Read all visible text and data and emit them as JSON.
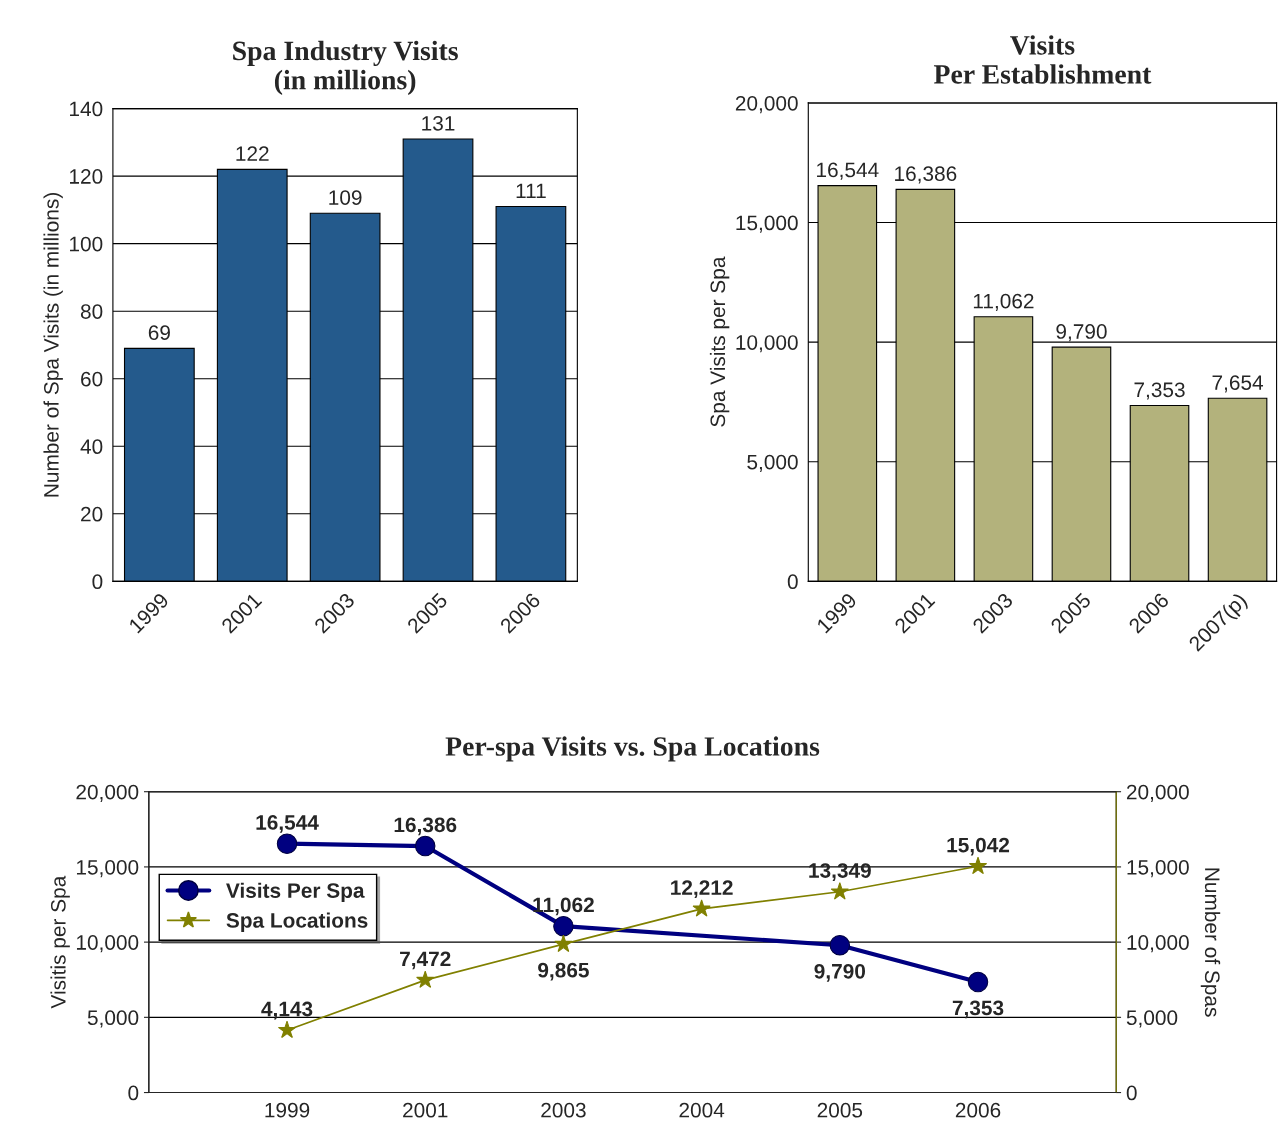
{
  "chart_data": [
    {
      "type": "bar",
      "title": "Spa Industry Visits\n(in millions)",
      "ylabel": "Number of Spa Visits (in millions)",
      "categories": [
        "1999",
        "2001",
        "2003",
        "2005",
        "2006"
      ],
      "values": [
        69,
        122,
        109,
        131,
        111
      ],
      "color": "#245a8c",
      "ylim": [
        0,
        140
      ],
      "yticks": [
        0,
        20,
        40,
        60,
        80,
        100,
        120,
        140
      ],
      "data_labels": true,
      "grid": "y"
    },
    {
      "type": "bar",
      "title": "Visits\nPer Establishment",
      "ylabel": "Spa Visits per Spa",
      "categories": [
        "1999",
        "2001",
        "2003",
        "2005",
        "2006",
        "2007(p)"
      ],
      "values": [
        16544,
        16386,
        11062,
        9790,
        7353,
        7654
      ],
      "value_labels": [
        "16,544",
        "16,386",
        "11,062",
        "9,790",
        "7,353",
        "7,654"
      ],
      "color": "#b3b27c",
      "ylim": [
        0,
        20000
      ],
      "yticks": [
        0,
        {
          "value": 5000,
          "label": "5,000"
        },
        {
          "value": 10000,
          "label": "10,000"
        },
        {
          "value": 15000,
          "label": "15,000"
        },
        {
          "value": 20000,
          "label": "20,000"
        }
      ],
      "grid": "y"
    },
    {
      "type": "line",
      "title": "Per-spa Visits vs. Spa Locations",
      "ylabel": "Visitis per Spa",
      "y2label": "Number of Spas",
      "categories": [
        "1999",
        "2001",
        "2003",
        "2004",
        "2005",
        "2006"
      ],
      "series": [
        {
          "name": "Visits Per Spa",
          "color": "#000080",
          "marker": "circle",
          "values": [
            16544,
            16386,
            11062,
            null,
            9790,
            7353
          ],
          "value_labels": [
            "16,544",
            "16,386",
            "11,062",
            null,
            "9,790",
            "7,353"
          ]
        },
        {
          "name": "Spa Locations",
          "color": "#808000",
          "marker": "star",
          "axis": "y2",
          "values": [
            4143,
            7472,
            9865,
            12212,
            13349,
            15042
          ],
          "value_labels": [
            "4,143",
            "7,472",
            "9,865",
            "12,212",
            "13,349",
            "15,042"
          ]
        }
      ],
      "ylim": [
        0,
        20000
      ],
      "yticks": [
        0,
        {
          "value": 5000,
          "label": "5,000"
        },
        {
          "value": 10000,
          "label": "10,000"
        },
        {
          "value": 15000,
          "label": "15,000"
        },
        {
          "value": 20000,
          "label": "20,000"
        }
      ],
      "y2lim": [
        0,
        20000
      ],
      "y2ticks": [
        0,
        {
          "value": 5000,
          "label": "5,000"
        },
        {
          "value": 10000,
          "label": "10,000"
        },
        {
          "value": 15000,
          "label": "15,000"
        },
        {
          "value": 20000,
          "label": "20,000"
        }
      ],
      "grid": "y",
      "legend": "top left"
    }
  ]
}
